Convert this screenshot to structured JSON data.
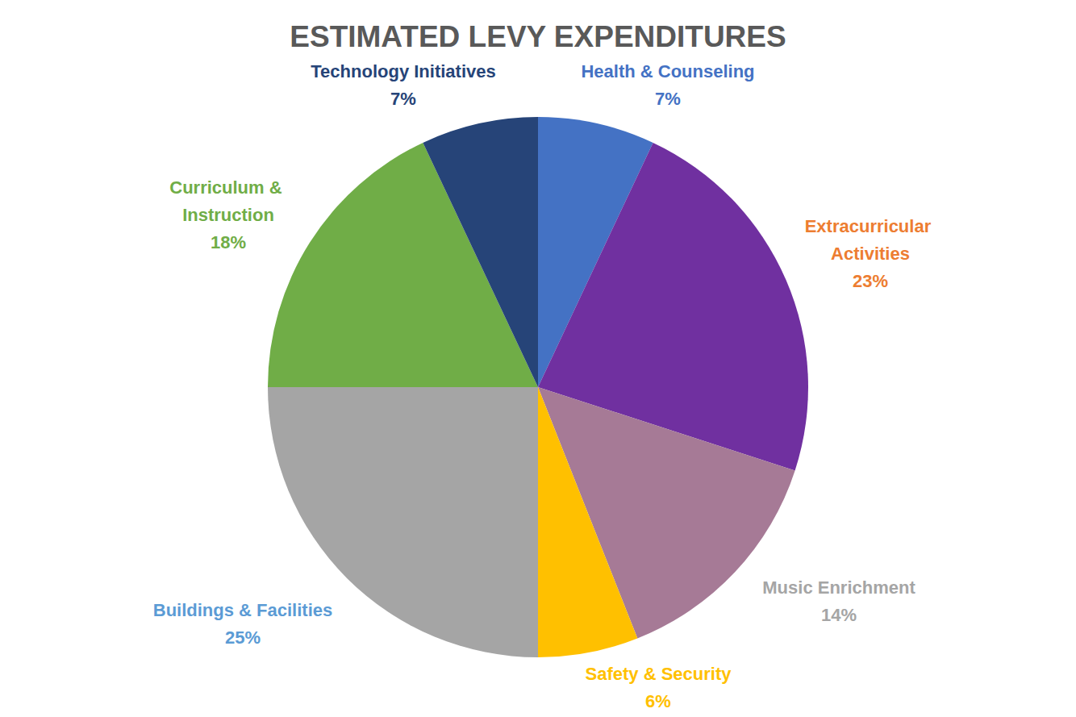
{
  "chart_data": {
    "type": "pie",
    "title": "ESTIMATED LEVY EXPENDITURES",
    "categories": [
      "Health & Counseling",
      "Extracurricular Activities",
      "Music Enrichment",
      "Safety & Security",
      "Buildings & Facilities",
      "Curriculum & Instruction",
      "Technology Initiatives"
    ],
    "values": [
      7,
      23,
      14,
      6,
      25,
      18,
      7
    ],
    "value_labels": [
      "7%",
      "23%",
      "14%",
      "6%",
      "25%",
      "18%",
      "7%"
    ],
    "colors": [
      "#4472c4",
      "#7030a0",
      "#a67a96",
      "#ffc000",
      "#a5a5a5",
      "#70ad47",
      "#264478"
    ],
    "data_labels": true
  }
}
